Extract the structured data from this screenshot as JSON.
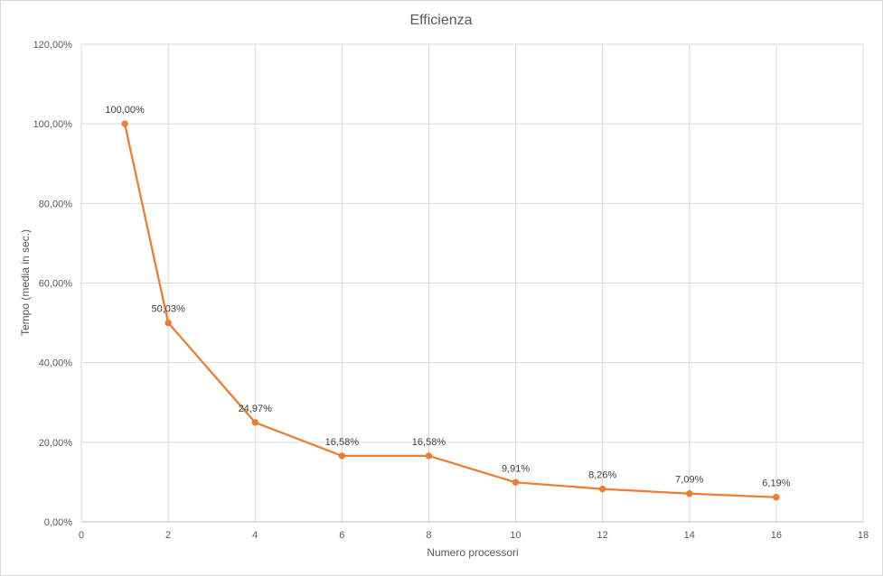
{
  "chart_data": {
    "type": "line",
    "title": "Efficienza",
    "xlabel": "Numero processori",
    "ylabel": "Tempo (media in sec.)",
    "xlim": [
      0,
      18
    ],
    "ylim": [
      0,
      120
    ],
    "x_ticks": [
      "0",
      "2",
      "4",
      "6",
      "8",
      "10",
      "12",
      "14",
      "16",
      "18"
    ],
    "y_ticks": [
      "0,00%",
      "20,00%",
      "40,00%",
      "60,00%",
      "80,00%",
      "100,00%",
      "120,00%"
    ],
    "grid": true,
    "legend": "none",
    "color": "#ED7D31",
    "series": [
      {
        "x": [
          1,
          2,
          4,
          6,
          8,
          10,
          12,
          14,
          16
        ],
        "values": [
          100.0,
          50.03,
          24.97,
          16.58,
          16.58,
          9.91,
          8.26,
          7.09,
          6.19
        ],
        "labels": [
          "100,00%",
          "50,03%",
          "24,97%",
          "16,58%",
          "16,58%",
          "9,91%",
          "8,26%",
          "7,09%",
          "6,19%"
        ]
      }
    ]
  }
}
